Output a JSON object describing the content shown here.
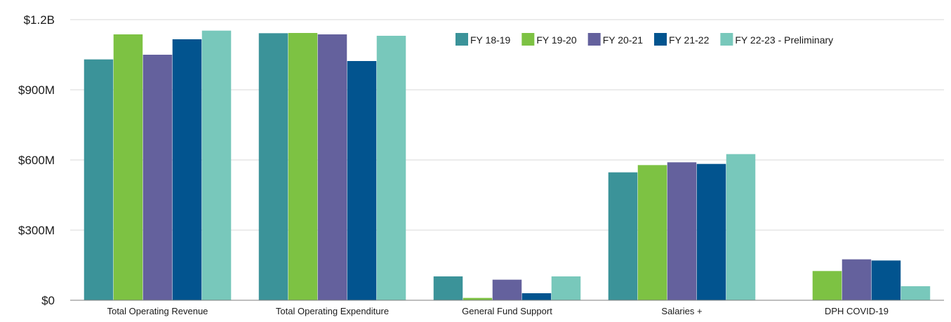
{
  "chart_data": {
    "type": "bar",
    "title": "",
    "xlabel": "",
    "ylabel": "",
    "categories": [
      "Total Operating Revenue",
      "Total Operating Expenditure",
      "General Fund Support",
      "Salaries +",
      "DPH COVID-19"
    ],
    "series": [
      {
        "name": "FY 18-19",
        "color": "#3b9399",
        "values": [
          1030,
          1142,
          102,
          547,
          0
        ]
      },
      {
        "name": "FY 19-20",
        "color": "#7dc243",
        "values": [
          1137,
          1143,
          10,
          578,
          125
        ]
      },
      {
        "name": "FY 20-21",
        "color": "#64619d",
        "values": [
          1050,
          1137,
          88,
          590,
          175
        ]
      },
      {
        "name": "FY 21-22",
        "color": "#02548f",
        "values": [
          1116,
          1023,
          30,
          583,
          170
        ]
      },
      {
        "name": "FY 22-23 - Preliminary",
        "color": "#78c8bb",
        "values": [
          1153,
          1131,
          102,
          625,
          60
        ]
      }
    ],
    "ylim": [
      0,
      1200
    ],
    "yticks": [
      0,
      300,
      600,
      900,
      1200
    ],
    "ytick_labels": [
      "$0",
      "$300M",
      "$600M",
      "$900M",
      "$1.2B"
    ],
    "grid": true,
    "legend_position": "top-right"
  }
}
